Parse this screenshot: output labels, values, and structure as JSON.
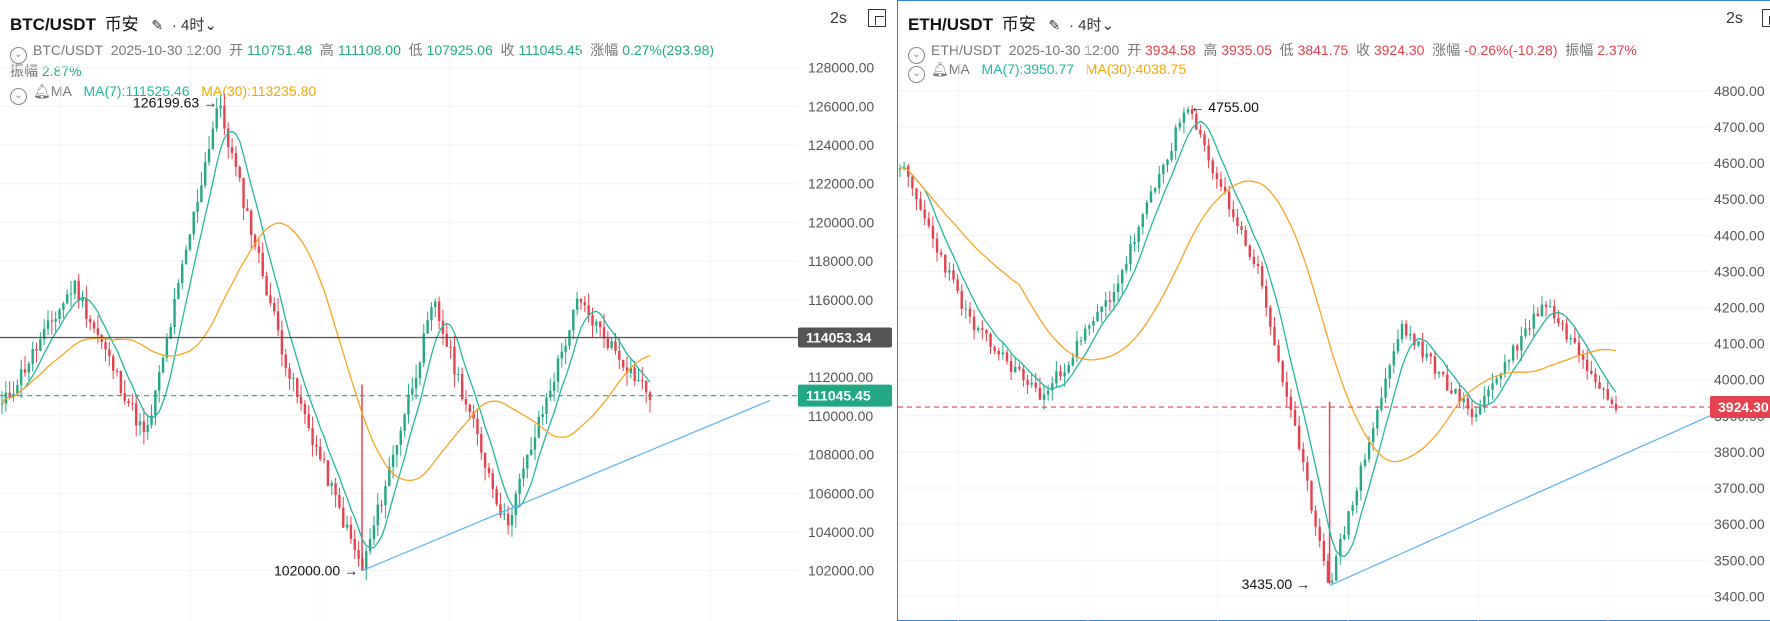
{
  "colors": {
    "up": "#22a884",
    "down": "#e5414f",
    "ma7": "#22b8a0",
    "ma30": "#f5a623",
    "trend": "#5ab4f0",
    "hline": "#555555",
    "active_border": "#2f80ed"
  },
  "left": {
    "title": {
      "symbol": "BTC/USDT",
      "exchange": "币安",
      "timeframe": "· 4时",
      "timeframe_arrow": "⌄",
      "refresh": "2s"
    },
    "info": {
      "pair": "BTC/USDT",
      "datetime": "2025-10-30 12:00",
      "open_label": "开",
      "open": "110751.48",
      "high_label": "高",
      "high": "111108.00",
      "low_label": "低",
      "low": "107925.06",
      "close_label": "收",
      "close": "111045.45",
      "change_label": "涨幅",
      "change": "0.27%(293.98)",
      "amp_label": "振幅",
      "amp": "2.87%"
    },
    "ma": {
      "label": "MA",
      "ma7": "MA(7):111525.46",
      "ma30": "MA(30):113235.80"
    },
    "axis_labels": [
      "128000.00",
      "126000.00",
      "124000.00",
      "122000.00",
      "120000.00",
      "118000.00",
      "116000.00",
      "114000.00",
      "112000.00",
      "110000.00",
      "108000.00",
      "106000.00",
      "104000.00",
      "102000.00"
    ],
    "price_tags": {
      "hline": "114053.34",
      "last": "111045.45"
    },
    "annotations": {
      "high": "126199.63",
      "low": "102000.00"
    }
  },
  "right": {
    "title": {
      "symbol": "ETH/USDT",
      "exchange": "币安",
      "timeframe": "· 4时",
      "timeframe_arrow": "⌄",
      "refresh": "2s"
    },
    "info": {
      "pair": "ETH/USDT",
      "datetime": "2025-10-30 12:00",
      "open_label": "开",
      "open": "3934.58",
      "high_label": "高",
      "high": "3935.05",
      "low_label": "低",
      "low": "3841.75",
      "close_label": "收",
      "close": "3924.30",
      "change_label": "涨幅",
      "change": "-0.26%(-10.28)",
      "amp_label": "振幅",
      "amp": "2.37%"
    },
    "ma": {
      "label": "MA",
      "ma7": "MA(7):3950.77",
      "ma30": "MA(30):4038.75"
    },
    "axis_labels": [
      "4800.00",
      "4700.00",
      "4600.00",
      "4500.00",
      "4400.00",
      "4300.00",
      "4200.00",
      "4100.00",
      "4000.00",
      "3900.00",
      "3800.00",
      "3700.00",
      "3600.00",
      "3500.00",
      "3400.00"
    ],
    "price_tags": {
      "last": "3924.30"
    },
    "annotations": {
      "high": "4755.00",
      "low": "3435.00"
    }
  },
  "chart_data": [
    {
      "type": "candlestick",
      "title": "BTC/USDT 币安 · 4时",
      "ylim": [
        101000,
        128500
      ],
      "key_points": [
        {
          "label": "start",
          "value": 110500
        },
        {
          "label": "rise",
          "value": 116800
        },
        {
          "label": "dip",
          "value": 108800
        },
        {
          "label": "peak",
          "value": 126199.63
        },
        {
          "label": "drop",
          "value": 112000
        },
        {
          "label": "flash_low",
          "value": 102000
        },
        {
          "label": "bounce",
          "value": 115800
        },
        {
          "label": "trough",
          "value": 104300
        },
        {
          "label": "recover",
          "value": 115900
        },
        {
          "label": "last",
          "value": 111045.45
        }
      ],
      "horizontal_line": 114053.34,
      "last_price": 111045.45,
      "ma7_last": 111525.46,
      "ma30_last": 113235.8,
      "trendline": {
        "from": 102000,
        "to": 110800
      }
    },
    {
      "type": "candlestick",
      "title": "ETH/USDT 币安 · 4时",
      "ylim": [
        3390,
        4830
      ],
      "key_points": [
        {
          "label": "start",
          "value": 4600
        },
        {
          "label": "drop",
          "value": 4150
        },
        {
          "label": "low",
          "value": 3950
        },
        {
          "label": "rise",
          "value": 4250
        },
        {
          "label": "peak",
          "value": 4755
        },
        {
          "label": "decline",
          "value": 4300
        },
        {
          "label": "flash_low",
          "value": 3435
        },
        {
          "label": "bounce",
          "value": 4150
        },
        {
          "label": "range",
          "value": 3900
        },
        {
          "label": "local_high",
          "value": 4220
        },
        {
          "label": "last",
          "value": 3924.3
        }
      ],
      "last_price": 3924.3,
      "ma7_last": 3950.77,
      "ma30_last": 4038.75,
      "trendline": {
        "from": 3430,
        "to": 3900
      }
    }
  ]
}
